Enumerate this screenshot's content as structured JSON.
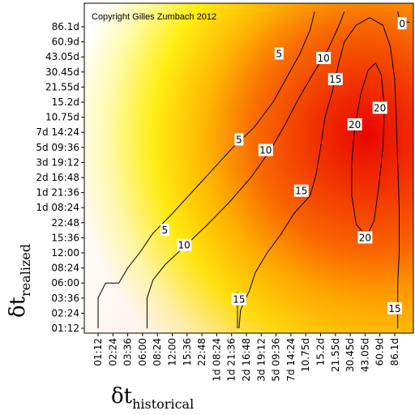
{
  "chart_data": {
    "type": "heatmap",
    "copyright": "Copyright Gilles Zumbach 2012",
    "xlabel_symbol": "δt",
    "xlabel_sub": "historical",
    "ylabel_symbol": "δt",
    "ylabel_sub": "realized",
    "x_ticks": [
      "01:12",
      "02:24",
      "03:36",
      "06:00",
      "08:24",
      "12:00",
      "15:36",
      "22:48",
      "1d 08:24",
      "1d 21:36",
      "2d 16:48",
      "3d 19:12",
      "5d 09:36",
      "7d 14:24",
      "10.75d",
      "15.2d",
      "21.55d",
      "30.45d",
      "43.05d",
      "60.9d",
      "86.1d"
    ],
    "y_ticks": [
      "01:12",
      "02:24",
      "03:36",
      "06:00",
      "08:24",
      "12:00",
      "15:36",
      "22:48",
      "1d 08:24",
      "1d 21:36",
      "2d 16:48",
      "3d 19:12",
      "5d 09:36",
      "7d 14:24",
      "10.75d",
      "15.2d",
      "21.55d",
      "30.45d",
      "43.05d",
      "60.9d",
      "86.1d"
    ],
    "contour_levels": [
      5,
      10,
      15,
      20
    ],
    "contour_labels": [
      {
        "text": "5",
        "x": 9.5,
        "y": 12.5
      },
      {
        "text": "5",
        "x": 4.5,
        "y": 6.5
      },
      {
        "text": "5",
        "x": 12.2,
        "y": 18.2
      },
      {
        "text": "10",
        "x": 5.8,
        "y": 5.5
      },
      {
        "text": "10",
        "x": 11.3,
        "y": 11.8
      },
      {
        "text": "10",
        "x": 15.2,
        "y": 17.9
      },
      {
        "text": "15",
        "x": 9.5,
        "y": 1.9
      },
      {
        "text": "15",
        "x": 13.7,
        "y": 9.1
      },
      {
        "text": "15",
        "x": 16.0,
        "y": 16.5
      },
      {
        "text": "15",
        "x": 20.0,
        "y": 1.3
      },
      {
        "text": "20",
        "x": 17.3,
        "y": 13.5
      },
      {
        "text": "20",
        "x": 19.0,
        "y": 14.6
      },
      {
        "text": "20",
        "x": 18.0,
        "y": 6.0
      },
      {
        "text": "0",
        "x": 20.5,
        "y": 20.2
      }
    ]
  }
}
